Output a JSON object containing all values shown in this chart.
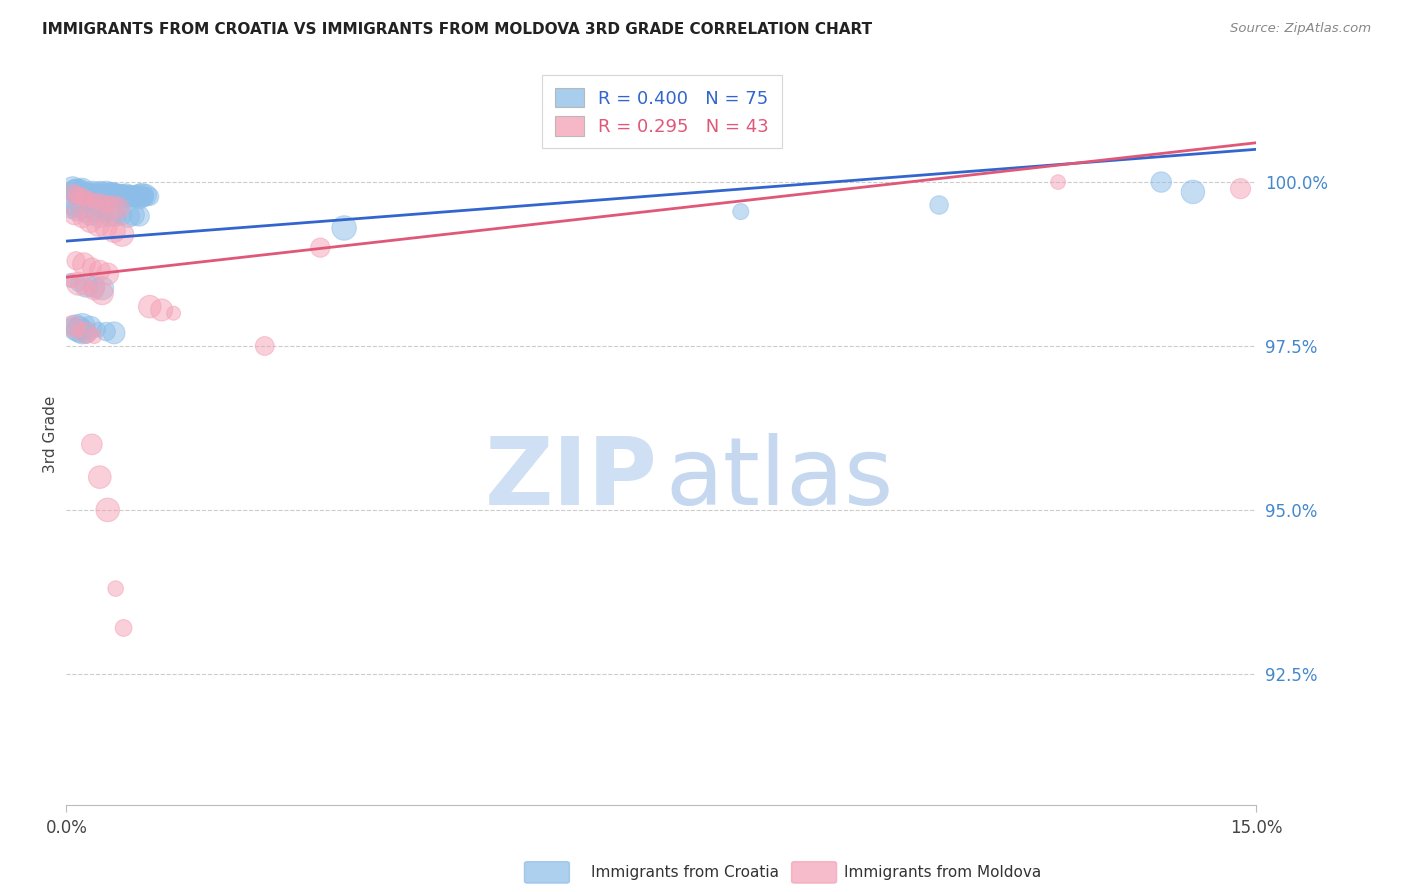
{
  "title": "IMMIGRANTS FROM CROATIA VS IMMIGRANTS FROM MOLDOVA 3RD GRADE CORRELATION CHART",
  "source": "Source: ZipAtlas.com",
  "ylabel": "3rd Grade",
  "ytick_values": [
    92.5,
    95.0,
    97.5,
    100.0
  ],
  "xlim": [
    0.0,
    15.0
  ],
  "ylim": [
    90.5,
    101.8
  ],
  "croatia_color": "#8bbde8",
  "moldova_color": "#f4a0b5",
  "croatia_line_color": "#3366cc",
  "moldova_line_color": "#e05878",
  "watermark_zip_color": "#cfe0f5",
  "watermark_atlas_color": "#c5d8f0",
  "R_croatia": 0.4,
  "N_croatia": 75,
  "R_moldova": 0.295,
  "N_moldova": 43,
  "croatia_x": [
    0.05,
    0.08,
    0.1,
    0.12,
    0.15,
    0.18,
    0.2,
    0.22,
    0.25,
    0.28,
    0.3,
    0.32,
    0.35,
    0.38,
    0.4,
    0.42,
    0.45,
    0.48,
    0.5,
    0.52,
    0.55,
    0.58,
    0.6,
    0.62,
    0.65,
    0.68,
    0.7,
    0.72,
    0.75,
    0.78,
    0.8,
    0.82,
    0.85,
    0.88,
    0.9,
    0.92,
    0.95,
    0.98,
    1.0,
    1.05,
    0.06,
    0.1,
    0.14,
    0.18,
    0.24,
    0.3,
    0.36,
    0.42,
    0.48,
    0.55,
    0.62,
    0.7,
    0.78,
    0.85,
    0.92,
    0.05,
    0.15,
    0.25,
    0.35,
    0.45,
    0.2,
    0.3,
    0.4,
    0.5,
    0.6,
    0.08,
    0.12,
    0.16,
    0.2,
    0.25,
    3.5,
    8.5,
    11.0,
    13.8,
    14.2
  ],
  "croatia_y": [
    99.85,
    99.9,
    99.88,
    99.87,
    99.85,
    99.86,
    99.9,
    99.84,
    99.85,
    99.82,
    99.8,
    99.83,
    99.82,
    99.8,
    99.85,
    99.82,
    99.8,
    99.83,
    99.82,
    99.8,
    99.82,
    99.8,
    99.85,
    99.8,
    99.78,
    99.82,
    99.8,
    99.78,
    99.8,
    99.78,
    99.82,
    99.78,
    99.8,
    99.78,
    99.8,
    99.78,
    99.8,
    99.78,
    99.8,
    99.78,
    99.6,
    99.62,
    99.58,
    99.6,
    99.55,
    99.52,
    99.55,
    99.5,
    99.52,
    99.5,
    99.48,
    99.5,
    99.48,
    99.5,
    99.48,
    98.5,
    98.45,
    98.42,
    98.4,
    98.38,
    97.8,
    97.78,
    97.75,
    97.72,
    97.7,
    97.8,
    97.78,
    97.75,
    97.72,
    97.7,
    99.3,
    99.55,
    99.65,
    100.0,
    99.85
  ],
  "moldova_x": [
    0.08,
    0.12,
    0.18,
    0.22,
    0.28,
    0.35,
    0.42,
    0.5,
    0.58,
    0.65,
    0.1,
    0.2,
    0.3,
    0.4,
    0.5,
    0.6,
    0.7,
    0.08,
    0.15,
    0.25,
    0.35,
    0.45,
    0.08,
    0.15,
    0.25,
    0.35,
    0.12,
    0.22,
    0.32,
    0.42,
    0.52,
    1.05,
    1.2,
    1.35,
    2.5,
    3.2,
    12.5,
    14.8,
    0.32,
    0.42,
    0.52,
    0.62,
    0.72
  ],
  "moldova_y": [
    99.82,
    99.8,
    99.78,
    99.75,
    99.72,
    99.7,
    99.68,
    99.65,
    99.62,
    99.6,
    99.5,
    99.45,
    99.4,
    99.35,
    99.3,
    99.25,
    99.2,
    98.5,
    98.45,
    98.4,
    98.35,
    98.3,
    97.8,
    97.75,
    97.7,
    97.65,
    98.8,
    98.75,
    98.7,
    98.65,
    98.6,
    98.1,
    98.05,
    98.0,
    97.5,
    99.0,
    100.0,
    99.9,
    96.0,
    95.5,
    95.0,
    93.8,
    93.2
  ]
}
